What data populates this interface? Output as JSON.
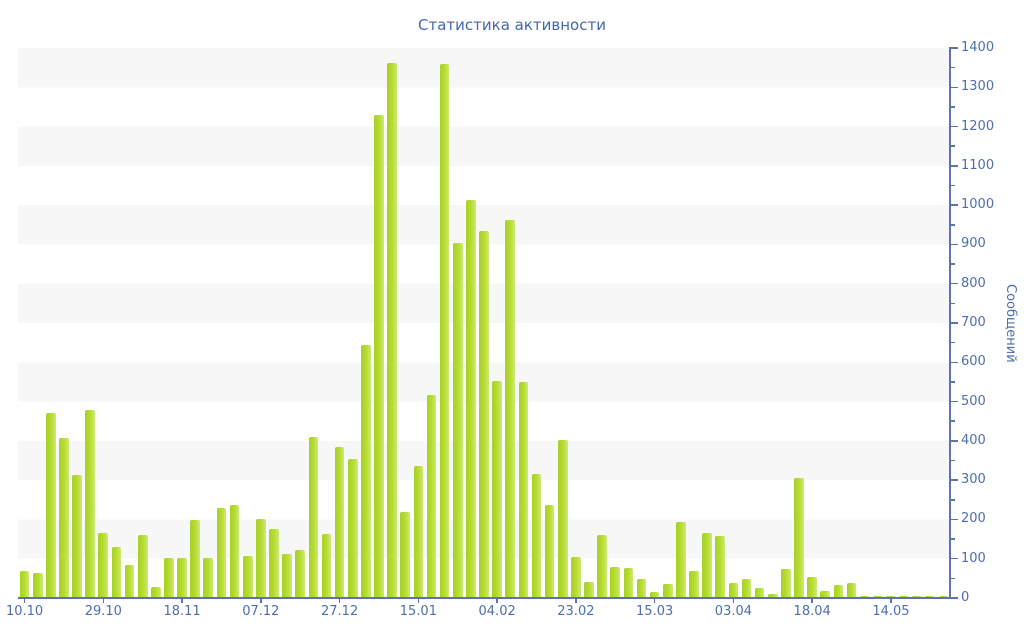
{
  "title": "Статистика активности",
  "y_axis": {
    "title": "Сообщений",
    "min": 0,
    "max": 1400,
    "major_step": 100,
    "minor_step": 50,
    "tick_labels": [
      "0",
      "100",
      "200",
      "300",
      "400",
      "500",
      "600",
      "700",
      "800",
      "900",
      "1000",
      "1100",
      "1200",
      "1300",
      "1400"
    ]
  },
  "x_axis": {
    "tick_labels": [
      "10.10",
      "29.10",
      "18.11",
      "07.12",
      "27.12",
      "15.01",
      "04.02",
      "23.02",
      "15.03",
      "03.04",
      "18.04",
      "14.05"
    ],
    "bars_per_label": 6
  },
  "chart_data": {
    "type": "bar",
    "title": "Статистика активности",
    "xlabel": "",
    "ylabel": "Сообщений",
    "ylim": [
      0,
      1400
    ],
    "grid": "horizontal-bands",
    "legend": "none",
    "x_tick_labels": [
      "10.10",
      "29.10",
      "18.11",
      "07.12",
      "27.12",
      "15.01",
      "04.02",
      "23.02",
      "15.03",
      "03.04",
      "18.04",
      "14.05"
    ],
    "x_tick_label_every_n_bars": 6,
    "values": [
      68,
      63,
      470,
      407,
      314,
      478,
      165,
      131,
      85,
      160,
      29,
      101,
      103,
      198,
      103,
      228,
      238,
      107,
      201,
      175,
      111,
      122,
      409,
      163,
      384,
      353,
      645,
      1230,
      1363,
      220,
      336,
      516,
      1360,
      904,
      1014,
      935,
      553,
      962,
      550,
      316,
      237,
      402,
      105,
      42,
      160,
      80,
      76,
      48,
      16,
      35,
      194,
      70,
      166,
      158,
      37,
      49,
      26,
      10,
      73,
      306,
      54,
      17,
      33,
      37,
      3,
      3,
      3,
      3,
      3,
      3,
      3
    ]
  },
  "colors": {
    "bar": "#b7de30",
    "bar_gradient_left": "#a9ce2a",
    "bar_gradient_right": "#cde97c",
    "title_text": "#4467ad",
    "tick_text": "#4e6eae",
    "axis_line": "#5d74aa",
    "stripe": "#f7f7f7",
    "background": "#ffffff"
  }
}
